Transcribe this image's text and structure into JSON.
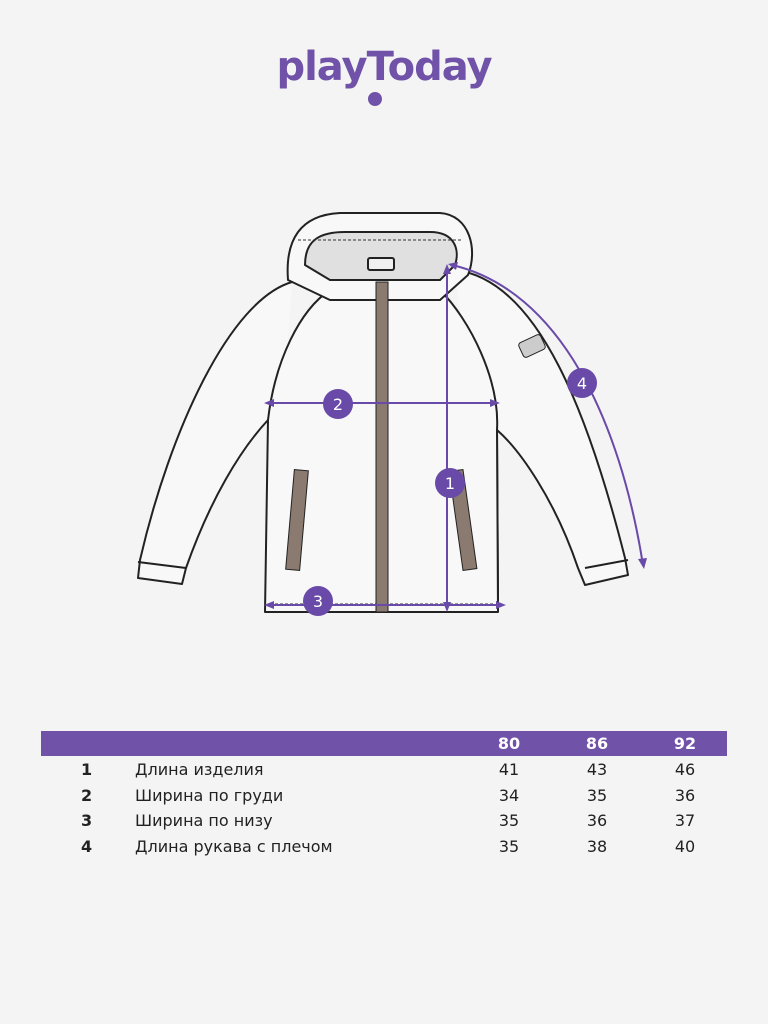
{
  "logo": {
    "text": "playToday",
    "color": "#7052a8"
  },
  "markers": [
    "1",
    "2",
    "3",
    "4"
  ],
  "table": {
    "header_color": "#7052a8",
    "sizes": [
      "80",
      "86",
      "92"
    ],
    "rows": [
      {
        "num": "1",
        "label": "Длина изделия",
        "values": [
          "41",
          "43",
          "46"
        ]
      },
      {
        "num": "2",
        "label": "Ширина по груди",
        "values": [
          "34",
          "35",
          "36"
        ]
      },
      {
        "num": "3",
        "label": "Ширина по низу",
        "values": [
          "35",
          "36",
          "37"
        ]
      },
      {
        "num": "4",
        "label": "Длина рукава с плечом",
        "values": [
          "35",
          "38",
          "40"
        ]
      }
    ]
  }
}
